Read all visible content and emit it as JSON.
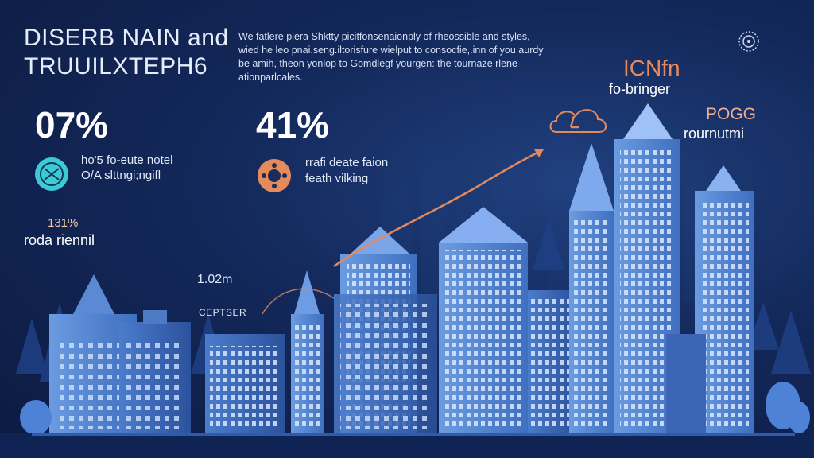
{
  "header": {
    "title_line1": "DISERB NAIN and",
    "title_line2": "TRUUILXTEPH6",
    "intro_text": "We fatlere piera Shktty picitfonsenaionply of rheossible and styles, wied he leo pnai.seng.iltorisfure wielput to consocfie,.inn of you aurdy be amih, theon yonlop to Gomdlegf yourgen: the tournaze rlene ationparlcales."
  },
  "stats": [
    {
      "value": "07%",
      "caption_line1": "ho'5 fo-eute notel",
      "caption_line2": "O/A slttngi;ngifl",
      "icon": "network-icon",
      "color": "#3ccad6"
    },
    {
      "value": "41%",
      "caption_line1": "rrafi deate faion",
      "caption_line2": "feath vilking",
      "icon": "hub-icon",
      "color": "#e58a5b"
    }
  ],
  "small_stat": {
    "value": "131%",
    "caption": "roda riennil"
  },
  "mid_label": {
    "value": "1.02m",
    "caption": "CEPTSER"
  },
  "right_labels": [
    {
      "value": "ICNfn",
      "caption": "fo-bringer"
    },
    {
      "value": "POGG",
      "caption": "rournutmi"
    }
  ],
  "icons": {
    "gear": "gear-icon",
    "cloud": "cloud-icon"
  },
  "colors": {
    "accent": "#e5895c",
    "primary_building": "#5e8fd6",
    "dark_bg": "#0c1a40"
  }
}
